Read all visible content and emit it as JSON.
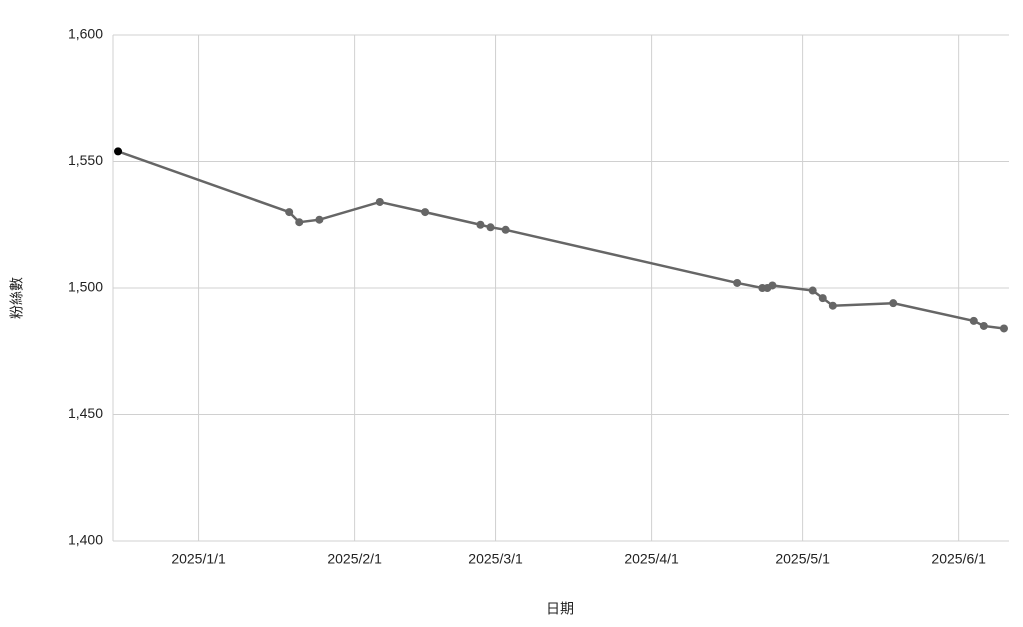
{
  "chart_data": {
    "type": "line",
    "x_label": "日期",
    "y_label": "粉絲數",
    "x": [
      "2024/12/16",
      "2025/1/19",
      "2025/1/21",
      "2025/1/25",
      "2025/2/6",
      "2025/2/15",
      "2025/2/26",
      "2025/2/28",
      "2025/3/3",
      "2025/4/18",
      "2025/4/23",
      "2025/4/24",
      "2025/4/25",
      "2025/5/3",
      "2025/5/5",
      "2025/5/7",
      "2025/5/19",
      "2025/6/4",
      "2025/6/6",
      "2025/6/10"
    ],
    "series": [
      {
        "name": "粉絲數",
        "color": "#666666",
        "values": [
          1554,
          1530,
          1526,
          1527,
          1534,
          1530,
          1525,
          1524,
          1523,
          1502,
          1500,
          1500,
          1501,
          1499,
          1496,
          1493,
          1494,
          1487,
          1485,
          1484
        ]
      }
    ],
    "first_point_color": "#000000",
    "xlim": [
      "2024/12/15",
      "2025/6/11"
    ],
    "xticks": [
      "2025/1/1",
      "2025/2/1",
      "2025/3/1",
      "2025/4/1",
      "2025/5/1",
      "2025/6/1"
    ],
    "ylim": [
      1400,
      1600
    ],
    "yticks": [
      {
        "value": 1400,
        "label": "1,400"
      },
      {
        "value": 1450,
        "label": "1,450"
      },
      {
        "value": 1500,
        "label": "1,500"
      },
      {
        "value": 1550,
        "label": "1,550"
      },
      {
        "value": 1600,
        "label": "1,600"
      }
    ],
    "grid": true
  }
}
